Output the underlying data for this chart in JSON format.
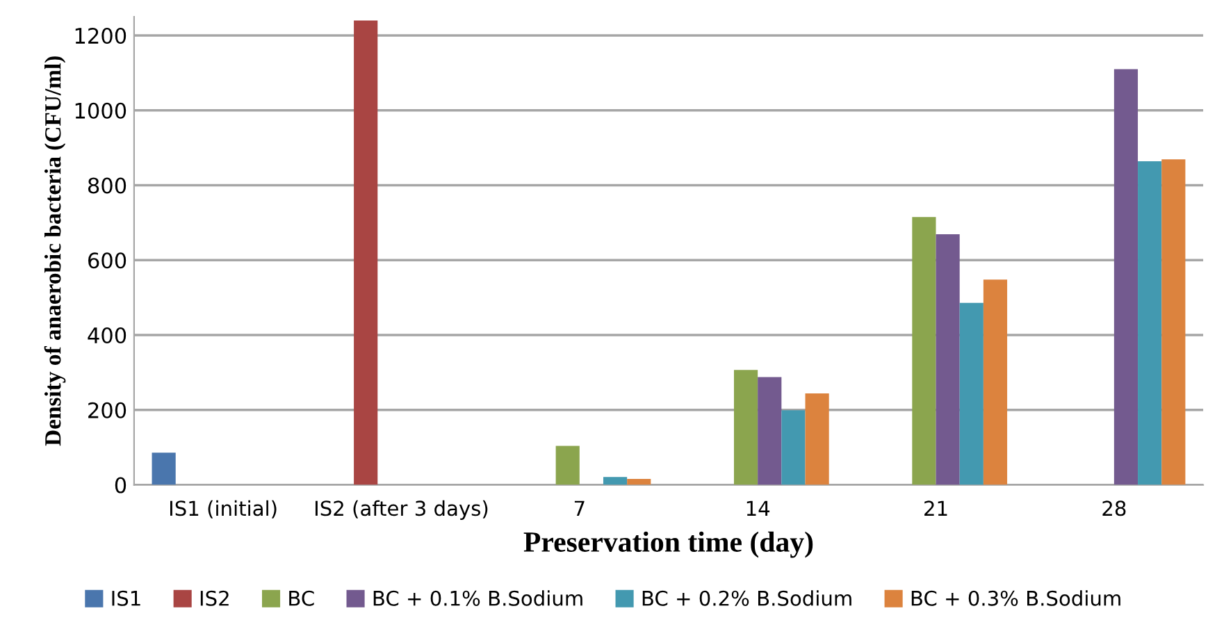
{
  "chart_data": {
    "type": "bar",
    "xlabel": "Preservation time (day)",
    "ylabel": "Density of anaerobic bacteria (CFU/ml)",
    "categories": [
      "IS1 (initial)",
      "IS2 (after 3 days)",
      "7",
      "14",
      "21",
      "28"
    ],
    "series": [
      {
        "name": "IS1",
        "color": "#4a76ad",
        "values": [
          86,
          null,
          null,
          null,
          null,
          null
        ]
      },
      {
        "name": "IS2",
        "color": "#a94543",
        "values": [
          null,
          1240,
          null,
          null,
          null,
          null
        ]
      },
      {
        "name": "BC",
        "color": "#8ba54e",
        "values": [
          null,
          null,
          104,
          307,
          715,
          null
        ]
      },
      {
        "name": "BC + 0.1% B.Sodium",
        "color": "#735a8f",
        "values": [
          null,
          null,
          null,
          288,
          669,
          1110
        ]
      },
      {
        "name": "BC + 0.2% B.Sodium",
        "color": "#4399b0",
        "values": [
          null,
          null,
          21,
          199,
          486,
          864
        ]
      },
      {
        "name": "BC + 0.3% B.Sodium",
        "color": "#dc833e",
        "values": [
          null,
          null,
          16,
          244,
          548,
          869
        ]
      }
    ],
    "ylim": [
      0,
      1250
    ],
    "yticks": [
      0,
      200,
      400,
      600,
      800,
      1000,
      1200
    ],
    "grid": "y",
    "legend": "bottom"
  }
}
